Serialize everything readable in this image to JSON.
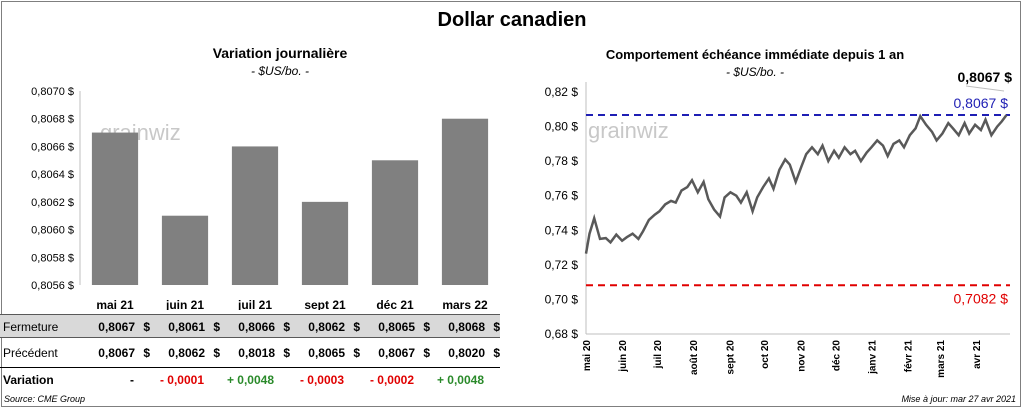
{
  "title": "Dollar canadien",
  "left_panel": {
    "subtitle": "Variation  journalière",
    "unit": "- $US/bo. -",
    "watermark": "grainwiz"
  },
  "right_panel": {
    "subtitle": "Comportement échéance immédiate depuis 1 an",
    "unit": "- $US/bo. -",
    "watermark": "grainwiz",
    "current_label": "0,8067 $",
    "high_label": "0,8067  $",
    "low_label": "0,7082  $"
  },
  "table": {
    "rows": [
      {
        "label": "Fermeture",
        "values": [
          "0,8067",
          "0,8061",
          "0,8066",
          "0,8062",
          "0,8065",
          "0,8068"
        ],
        "currency": "$"
      },
      {
        "label": "Précédent",
        "values": [
          "0,8067",
          "0,8062",
          "0,8018",
          "0,8065",
          "0,8067",
          "0,8020"
        ],
        "currency": "$"
      }
    ],
    "variation_label": "Variation",
    "variations": [
      "-",
      "- 0,0001",
      "+ 0,0048",
      "- 0,0003",
      "- 0,0002",
      "+ 0,0048"
    ]
  },
  "footer": {
    "source": "Source: CME Group",
    "updated": "Mise à jour: mar 27 avr 2021"
  },
  "colors": {
    "bar": "#808080",
    "line": "#595959",
    "high_line": "#1f1fb4",
    "low_line": "#e00000",
    "negative": "#e00000",
    "positive": "#2a8a2a"
  },
  "chart_data": [
    {
      "type": "bar",
      "categories": [
        "mai 21",
        "juin 21",
        "juil 21",
        "sept 21",
        "déc 21",
        "mars 22"
      ],
      "values": [
        0.8067,
        0.8061,
        0.8066,
        0.8062,
        0.8065,
        0.8068
      ],
      "ylim": [
        0.8056,
        0.807
      ],
      "yticks": [
        "0,8056 $",
        "0,8058 $",
        "0,8060 $",
        "0,8062 $",
        "0,8064 $",
        "0,8066 $",
        "0,8068 $",
        "0,8070 $"
      ],
      "grid": false
    },
    {
      "type": "line",
      "x": [
        "2020-05-01",
        "2020-05-04",
        "2020-05-08",
        "2020-05-13",
        "2020-05-18",
        "2020-05-22",
        "2020-05-27",
        "2020-06-01",
        "2020-06-05",
        "2020-06-10",
        "2020-06-15",
        "2020-06-19",
        "2020-06-24",
        "2020-06-29",
        "2020-07-03",
        "2020-07-08",
        "2020-07-13",
        "2020-07-17",
        "2020-07-22",
        "2020-07-27",
        "2020-07-31",
        "2020-08-05",
        "2020-08-10",
        "2020-08-14",
        "2020-08-19",
        "2020-08-24",
        "2020-08-28",
        "2020-09-02",
        "2020-09-07",
        "2020-09-11",
        "2020-09-16",
        "2020-09-21",
        "2020-09-25",
        "2020-09-30",
        "2020-10-05",
        "2020-10-09",
        "2020-10-14",
        "2020-10-19",
        "2020-10-23",
        "2020-10-28",
        "2020-11-02",
        "2020-11-06",
        "2020-11-11",
        "2020-11-16",
        "2020-11-20",
        "2020-11-25",
        "2020-11-30",
        "2020-12-04",
        "2020-12-09",
        "2020-12-14",
        "2020-12-18",
        "2020-12-23",
        "2020-12-28",
        "2021-01-01",
        "2021-01-06",
        "2021-01-11",
        "2021-01-15",
        "2021-01-20",
        "2021-01-25",
        "2021-01-29",
        "2021-02-03",
        "2021-02-08",
        "2021-02-12",
        "2021-02-17",
        "2021-02-22",
        "2021-02-26",
        "2021-03-03",
        "2021-03-08",
        "2021-03-12",
        "2021-03-17",
        "2021-03-22",
        "2021-03-26",
        "2021-03-31",
        "2021-04-05",
        "2021-04-09",
        "2021-04-14",
        "2021-04-19",
        "2021-04-23",
        "2021-04-27"
      ],
      "values": [
        0.7265,
        0.738,
        0.747,
        0.735,
        0.7355,
        0.733,
        0.7375,
        0.734,
        0.736,
        0.738,
        0.735,
        0.7395,
        0.746,
        0.749,
        0.751,
        0.755,
        0.757,
        0.756,
        0.763,
        0.765,
        0.769,
        0.762,
        0.768,
        0.758,
        0.752,
        0.748,
        0.759,
        0.762,
        0.76,
        0.756,
        0.762,
        0.751,
        0.759,
        0.765,
        0.77,
        0.764,
        0.775,
        0.781,
        0.778,
        0.768,
        0.777,
        0.784,
        0.788,
        0.784,
        0.789,
        0.78,
        0.786,
        0.782,
        0.788,
        0.784,
        0.786,
        0.78,
        0.785,
        0.788,
        0.792,
        0.789,
        0.783,
        0.79,
        0.792,
        0.788,
        0.795,
        0.799,
        0.806,
        0.801,
        0.797,
        0.792,
        0.796,
        0.802,
        0.799,
        0.795,
        0.802,
        0.796,
        0.801,
        0.798,
        0.804,
        0.795,
        0.8,
        0.803,
        0.8067
      ],
      "ylim": [
        0.68,
        0.82
      ],
      "yticks": [
        "0,68 $",
        "0,70 $",
        "0,72 $",
        "0,74 $",
        "0,76 $",
        "0,78 $",
        "0,80 $",
        "0,82 $"
      ],
      "xticks": [
        "mai 20",
        "juin 20",
        "juil 20",
        "août 20",
        "sept 20",
        "oct 20",
        "nov 20",
        "déc 20",
        "janv 21",
        "févr 21",
        "mars 21",
        "avr 21"
      ],
      "hlines": [
        {
          "name": "high",
          "value": 0.8067
        },
        {
          "name": "low",
          "value": 0.7082
        }
      ],
      "grid": false
    }
  ]
}
